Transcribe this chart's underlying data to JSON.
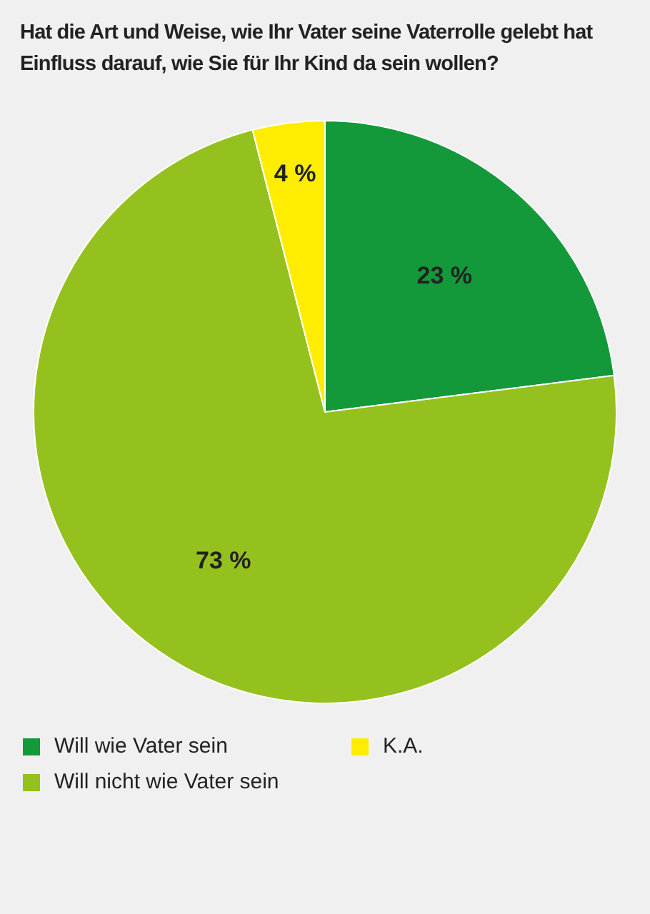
{
  "chart_data": {
    "type": "pie",
    "title": "Hat die Art und Weise, wie Ihr Vater seine Vaterrolle gelebt hat Einfluss darauf, wie Sie für Ihr Kind da sein wollen?",
    "categories": [
      "Will wie Vater sein",
      "Will nicht wie Vater sein",
      "K.A."
    ],
    "values": [
      23,
      73,
      4
    ],
    "colors": [
      "#13993a",
      "#95c11f",
      "#ffed00"
    ],
    "value_labels": [
      "23 %",
      "73 %",
      "4 %"
    ],
    "legend": "bottom"
  }
}
